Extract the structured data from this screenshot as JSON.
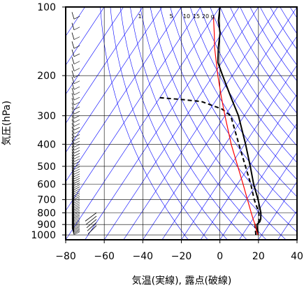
{
  "chart_data": {
    "type": "line",
    "chart_kind": "skew-T log-P diagram",
    "xlabel": "気温(実線), 露点(破線)",
    "ylabel": "気圧(hPa)",
    "xlim": [
      -80,
      40
    ],
    "ylim_pressure": [
      1050,
      100
    ],
    "y_scale": "log",
    "x_ticks": [
      -80,
      -60,
      -40,
      -20,
      0,
      20,
      40
    ],
    "y_ticks": [
      100,
      200,
      300,
      400,
      500,
      600,
      700,
      800,
      900,
      1000
    ],
    "mixing_ratio_labels": [
      "1",
      "5",
      "10",
      "15",
      "20",
      "g"
    ],
    "grid": true,
    "colors": {
      "temperature": "#000000",
      "dewpoint": "#000000",
      "parcel": "#ff0000",
      "isotherm": "#0000ff",
      "dry_adiabat": "#0000ff",
      "grid": "#000000"
    },
    "series": [
      {
        "style": "solid",
        "points": [
          [
            1000,
            18
          ],
          [
            975,
            17
          ],
          [
            950,
            16
          ],
          [
            925,
            15
          ],
          [
            900,
            14
          ],
          [
            875,
            14.5
          ],
          [
            850,
            14
          ],
          [
            800,
            12
          ],
          [
            700,
            6
          ],
          [
            600,
            -1.5
          ],
          [
            500,
            -9.5
          ],
          [
            400,
            -19.5
          ],
          [
            300,
            -33
          ],
          [
            250,
            -43
          ],
          [
            200,
            -55
          ],
          [
            175,
            -62
          ],
          [
            150,
            -67
          ],
          [
            130,
            -71
          ],
          [
            115,
            -76
          ],
          [
            100,
            -80
          ]
        ]
      },
      {
        "style": "dashed",
        "points": [
          [
            1000,
            17
          ],
          [
            975,
            16
          ],
          [
            950,
            15
          ],
          [
            925,
            14
          ],
          [
            900,
            13
          ],
          [
            875,
            14
          ],
          [
            850,
            13
          ],
          [
            800,
            11
          ],
          [
            700,
            4
          ],
          [
            600,
            -3
          ],
          [
            500,
            -12
          ],
          [
            400,
            -23
          ],
          [
            300,
            -37
          ],
          [
            280,
            -44
          ],
          [
            260,
            -57
          ],
          [
            255,
            -67
          ],
          [
            250,
            -80
          ]
        ]
      },
      {
        "style": "solid",
        "color": "red",
        "points": [
          [
            1000,
            18
          ],
          [
            950,
            15.5
          ],
          [
            900,
            13
          ],
          [
            850,
            10
          ],
          [
            800,
            7
          ],
          [
            700,
            0.5
          ],
          [
            600,
            -7
          ],
          [
            500,
            -16
          ],
          [
            400,
            -27
          ],
          [
            300,
            -40
          ],
          [
            250,
            -48
          ],
          [
            200,
            -57.5
          ],
          [
            150,
            -69
          ],
          [
            130,
            -74
          ],
          [
            115,
            -78.5
          ],
          [
            110,
            -80
          ]
        ]
      }
    ]
  }
}
